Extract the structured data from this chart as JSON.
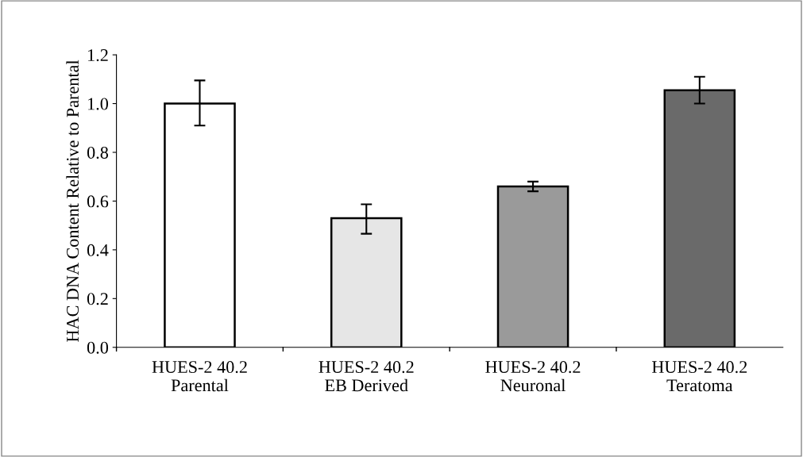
{
  "chart_data": {
    "type": "bar",
    "ylabel": "HAC DNA Content Relative to Parental",
    "categories": [
      "HUES-2 40.2\nParental",
      "HUES-2 40.2\nEB Derived",
      "HUES-2 40.2\nNeuronal",
      "HUES-2 40.2\nTeratoma"
    ],
    "values": [
      1.0,
      0.53,
      0.66,
      1.055
    ],
    "errors": [
      [
        0.91,
        1.095
      ],
      [
        0.466,
        0.587
      ],
      [
        0.64,
        0.68
      ],
      [
        1.0,
        1.11
      ]
    ],
    "colors": [
      "#ffffff",
      "#e6e6e6",
      "#9a9a9a",
      "#6a6a6a"
    ],
    "ylim": [
      0,
      1.2
    ],
    "yticks": [
      {
        "value": 0,
        "label": "0.0"
      },
      {
        "value": 0.2,
        "label": "0.2"
      },
      {
        "value": 0.4,
        "label": "0.4"
      },
      {
        "value": 0.6,
        "label": "0.6"
      },
      {
        "value": 0.8,
        "label": "0.8"
      },
      {
        "value": 1.0,
        "label": "1.0"
      },
      {
        "value": 1.2,
        "label": "1.2"
      }
    ],
    "grid": false,
    "legend": false
  }
}
